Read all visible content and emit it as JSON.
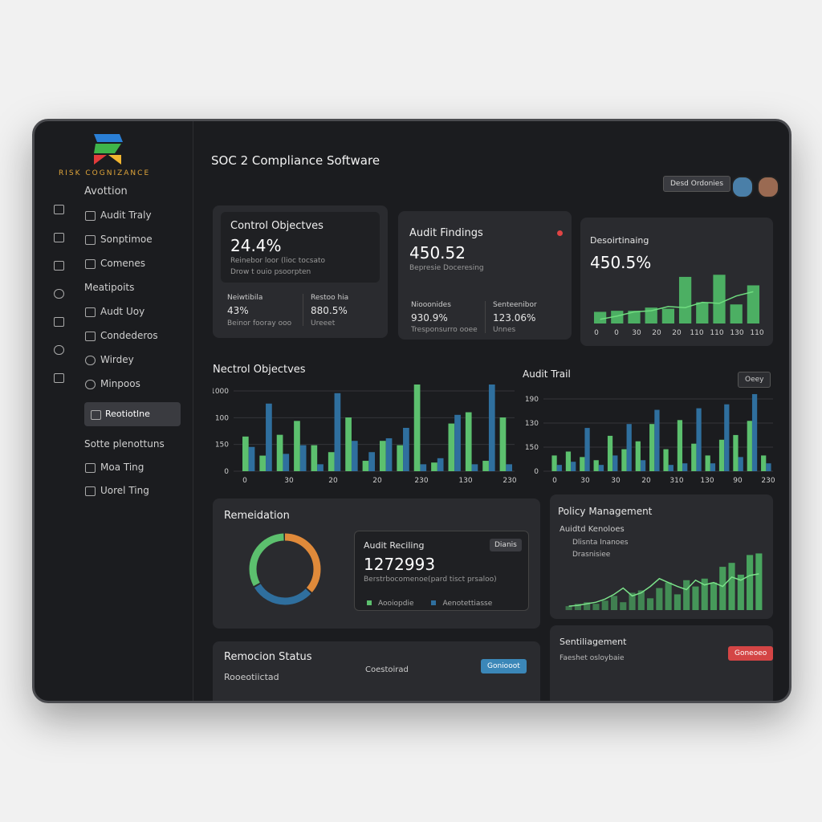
{
  "sidebar": {
    "brand": "RISK COGNIZANCE",
    "heading1": "Avottion",
    "items1": [
      "Audit Traly",
      "Sonptimoe",
      "Comenes"
    ],
    "heading2": "Meatipoits",
    "items2": [
      "Audt Uoy",
      "Condederos",
      "Wirdey",
      "Minpoos"
    ],
    "active": "Reotiotlne",
    "heading3": "Sotte plenottuns",
    "items3": [
      "Moa Ting",
      "Uorel Ting"
    ]
  },
  "header": {
    "title": "SOC 2 Compliance Software",
    "button": "Desd Ordonies"
  },
  "cards": [
    {
      "title": "Control Objectves",
      "value": "24.4%",
      "lines": [
        "Reinebor loor (lioc tocsato",
        "Drow t ouio psoorpten"
      ],
      "stats": [
        {
          "label": "Neiwtibila",
          "value": "43%",
          "note": "Beinor fooray ooo"
        },
        {
          "label": "Restoo hia",
          "value": "880.5%",
          "note": "Ureeet"
        }
      ]
    },
    {
      "title": "Audit Findings",
      "value": "450.52",
      "lines": [
        "Bepresie Doceresing"
      ],
      "stats": [
        {
          "label": "Niooonides",
          "value": "930.9%",
          "note": "Tresponsurro ooee"
        },
        {
          "label": "Senteenibor",
          "value": "123.06%",
          "note": "Unnes"
        }
      ]
    },
    {
      "title": "Desoirtinaing",
      "value": "450.5%",
      "chart": {
        "type": "bar",
        "ylim": [
          0,
          100
        ],
        "x_labels": [
          "0",
          "0",
          "30",
          "20",
          "20",
          "110",
          "110",
          "130",
          "110"
        ],
        "series": [
          {
            "color": "#4caf63",
            "values": [
              22,
              24,
              24,
              30,
              28,
              88,
              40,
              92,
              36,
              72
            ]
          }
        ],
        "line": {
          "color": "#6fdc7f",
          "values": [
            8,
            14,
            22,
            24,
            32,
            30,
            40,
            38,
            52,
            60
          ]
        }
      }
    }
  ],
  "nectrol": {
    "title": "Nectrol Objectves",
    "chart": {
      "type": "bar",
      "ylim": [
        0,
        100
      ],
      "y_axis_labels": [
        "1000",
        "100",
        "150",
        "0"
      ],
      "x_labels": [
        "0",
        "30",
        "20",
        "20",
        "230",
        "130",
        "230"
      ],
      "series": [
        {
          "color": "#5cc06e",
          "values": [
            40,
            18,
            42,
            58,
            30,
            22,
            62,
            12,
            35,
            30,
            100,
            10,
            55,
            68,
            12,
            62
          ]
        },
        {
          "color": "#2f6f9e",
          "values": [
            28,
            78,
            20,
            30,
            8,
            90,
            35,
            22,
            38,
            50,
            8,
            15,
            65,
            8,
            100,
            8
          ]
        }
      ]
    }
  },
  "audit_trail": {
    "title": "Audit Trail",
    "dropdown": "Oeey",
    "chart": {
      "type": "bar",
      "ylim": [
        0,
        100
      ],
      "y_axis_labels": [
        "190",
        "130",
        "150",
        "0"
      ],
      "x_labels": [
        "0",
        "30",
        "30",
        "20",
        "310",
        "130",
        "90",
        "230"
      ],
      "series": [
        {
          "color": "#5cc06e",
          "values": [
            20,
            25,
            18,
            14,
            45,
            28,
            38,
            60,
            28,
            65,
            35,
            20,
            40,
            46,
            64,
            20
          ]
        },
        {
          "color": "#2f6f9e",
          "values": [
            8,
            12,
            55,
            8,
            20,
            60,
            14,
            78,
            8,
            10,
            80,
            10,
            85,
            18,
            98,
            10
          ]
        }
      ]
    }
  },
  "remediation": {
    "title": "Remeidation",
    "donut": {
      "type": "pie",
      "series": [
        {
          "color": "#e08a3a",
          "values": [
            37
          ]
        },
        {
          "color": "#2f6f9e",
          "values": [
            30
          ]
        },
        {
          "color": "#5cc06e",
          "values": [
            33
          ]
        }
      ]
    },
    "panel_title": "Audit Reciling",
    "panel_button": "Dianis",
    "panel_value": "1272993",
    "panel_note": "Berstrbocomenoe(pard tisct prsaloo)",
    "legend": [
      {
        "name": "Aooiopdie",
        "color": "#5cc06e"
      },
      {
        "name": "Aenotettiasse",
        "color": "#2f6f9e"
      }
    ]
  },
  "policy": {
    "title": "Policy Management",
    "subtitle": "Auidtd Kenoloes",
    "items": [
      "Dlisnta Inanoes",
      "Drasnisiee"
    ],
    "chart": {
      "type": "bar",
      "ylim": [
        0,
        100
      ],
      "series": [
        {
          "color": "#4caf63",
          "values": [
            5,
            8,
            10,
            8,
            12,
            18,
            10,
            22,
            25,
            15,
            28,
            35,
            20,
            38,
            30,
            40,
            35,
            55,
            60,
            45,
            70,
            72
          ]
        }
      ],
      "line": {
        "color": "#7be28a",
        "values": [
          5,
          6,
          8,
          10,
          14,
          20,
          28,
          18,
          22,
          30,
          40,
          35,
          30,
          26,
          38,
          32,
          35,
          30,
          42,
          38,
          44,
          46
        ]
      }
    }
  },
  "remocion": {
    "title": "Remocion Status",
    "left": "Rooeotiictad",
    "right": "Coestoirad",
    "button": "Goniooot"
  },
  "sentili": {
    "title": "Sentiliagement",
    "note": "Faeshet osloybaie",
    "button": "Goneoeo"
  }
}
